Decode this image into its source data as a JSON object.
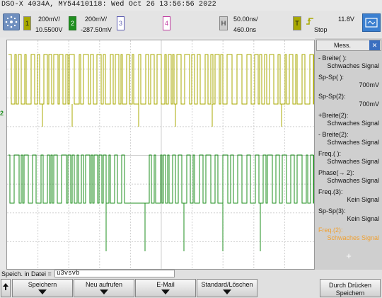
{
  "header": {
    "title": "DSO-X 4034A, MY54410118: Wed Oct 26 13:56:56 2022"
  },
  "channels": [
    {
      "num": "1",
      "scale": "200mV/",
      "offset": "10.5500V",
      "color": "#a8a800"
    },
    {
      "num": "2",
      "scale": "200mV/",
      "offset": "-287.50mV",
      "color": "#1f8f1f"
    },
    {
      "num": "3",
      "color": "#5a5ab0"
    },
    {
      "num": "4",
      "color": "#c03aa0"
    }
  ],
  "horizontal": {
    "label": "H",
    "scale": "50.00ns/",
    "delay": "460.0ns"
  },
  "trigger": {
    "label": "T",
    "level": "11.8V",
    "state": "Stop"
  },
  "markers": {
    "ch2": "2"
  },
  "measurements": {
    "title": "Mess.",
    "items": [
      {
        "name": "- Breite( ):",
        "value": "Schwaches Signal"
      },
      {
        "name": "Sp-Sp( ):",
        "value": "700mV"
      },
      {
        "name": "Sp-Sp(2):",
        "value": "700mV"
      },
      {
        "name": "+Breite(2):",
        "value": "Schwaches Signal"
      },
      {
        "name": "- Breite(2):",
        "value": "Schwaches Signal"
      },
      {
        "name": "Freq.( ):",
        "value": "Schwaches Signal"
      },
      {
        "name": "Phase(→ 2):",
        "value": "Schwaches Signal"
      },
      {
        "name": "Freq.(3):",
        "value": "Kein Signal"
      },
      {
        "name": "Sp-Sp(3):",
        "value": "Kein Signal"
      },
      {
        "name": "Freq.(2):",
        "value": "Schwaches Signal"
      }
    ],
    "add": "+"
  },
  "status": {
    "label": "Speich. in Datei =",
    "filename": "u3vsvb"
  },
  "softkeys": [
    {
      "label": "Speichern"
    },
    {
      "label": "Neu aufrufen"
    },
    {
      "label": "E-Mail"
    },
    {
      "label": "Standard/Löschen"
    },
    {
      "label": "Durch Drücken Speichern"
    }
  ]
}
